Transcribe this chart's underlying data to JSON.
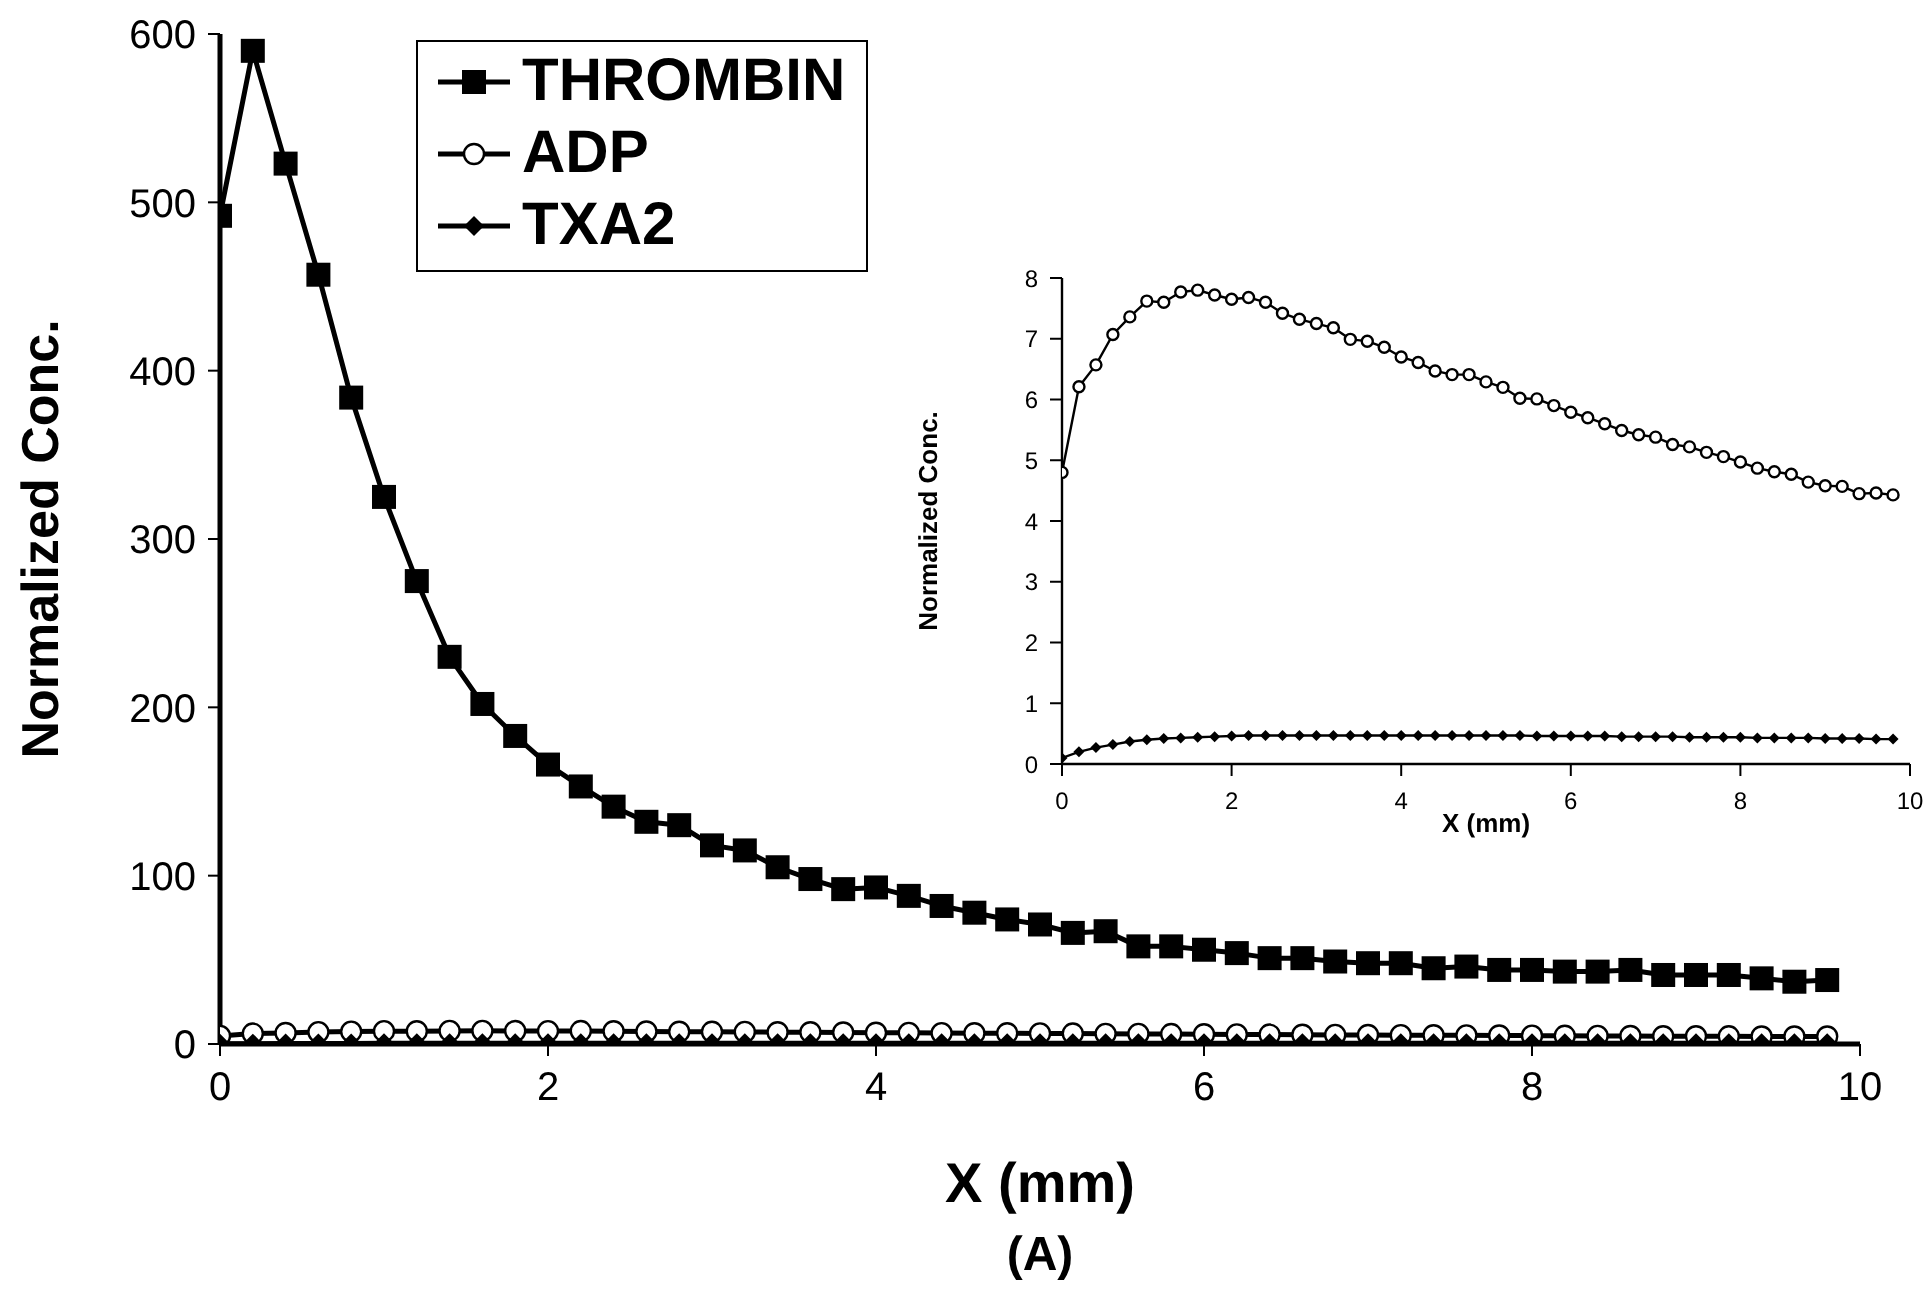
{
  "chart_data": [
    {
      "type": "line",
      "xlabel": "X (mm)",
      "ylabel": "Normalized Conc.",
      "annotations": [
        "(A)"
      ],
      "x": [
        0,
        0.2,
        0.4,
        0.6,
        0.8,
        1,
        1.2,
        1.4,
        1.6,
        1.8,
        2,
        2.2,
        2.4,
        2.6,
        2.8,
        3,
        3.2,
        3.4,
        3.6,
        3.8,
        4,
        4.2,
        4.4,
        4.6,
        4.8,
        5,
        5.2,
        5.4,
        5.6,
        5.8,
        6,
        6.2,
        6.4,
        6.6,
        6.8,
        7,
        7.2,
        7.4,
        7.6,
        7.8,
        8,
        8.2,
        8.4,
        8.6,
        8.8,
        9,
        9.2,
        9.4,
        9.6,
        9.8
      ],
      "xlim": [
        0,
        10
      ],
      "xticks": [
        0,
        2,
        4,
        6,
        8,
        10
      ],
      "ylim": [
        0,
        600
      ],
      "yticks": [
        0,
        100,
        200,
        300,
        400,
        500,
        600
      ],
      "legend": "top left",
      "grid": false,
      "series": [
        {
          "name": "THROMBIN",
          "color": "#000000",
          "marker": "square",
          "values": [
            492,
            590,
            523,
            457,
            384,
            325,
            275,
            230,
            202,
            183,
            166,
            153,
            141,
            132,
            130,
            118,
            115,
            105,
            98,
            92,
            93,
            88,
            82,
            78,
            74,
            71,
            66,
            67,
            58,
            58,
            56,
            54,
            51,
            51,
            49,
            48,
            48,
            45,
            46,
            44,
            44,
            43,
            43,
            44,
            41,
            41,
            41,
            39,
            37,
            38
          ]
        },
        {
          "name": "ADP",
          "color": "#000000",
          "marker": "circle",
          "values": [
            4.8,
            6.21,
            6.57,
            7.07,
            7.36,
            7.62,
            7.6,
            7.77,
            7.8,
            7.72,
            7.65,
            7.68,
            7.6,
            7.42,
            7.32,
            7.25,
            7.18,
            6.99,
            6.96,
            6.86,
            6.7,
            6.61,
            6.47,
            6.41,
            6.41,
            6.29,
            6.2,
            6.02,
            6.01,
            5.9,
            5.79,
            5.7,
            5.6,
            5.49,
            5.42,
            5.38,
            5.26,
            5.22,
            5.13,
            5.06,
            4.97,
            4.87,
            4.81,
            4.77,
            4.64,
            4.58,
            4.57,
            4.45,
            4.46,
            4.43
          ]
        },
        {
          "name": "TXA2",
          "color": "#000000",
          "marker": "diamond",
          "values": [
            0.1,
            0.2,
            0.27,
            0.32,
            0.37,
            0.4,
            0.42,
            0.43,
            0.44,
            0.45,
            0.46,
            0.47,
            0.47,
            0.47,
            0.47,
            0.47,
            0.47,
            0.47,
            0.47,
            0.47,
            0.47,
            0.47,
            0.47,
            0.47,
            0.47,
            0.47,
            0.47,
            0.47,
            0.46,
            0.46,
            0.46,
            0.46,
            0.46,
            0.45,
            0.45,
            0.45,
            0.45,
            0.44,
            0.44,
            0.44,
            0.44,
            0.43,
            0.43,
            0.43,
            0.43,
            0.42,
            0.42,
            0.42,
            0.41,
            0.41
          ]
        }
      ]
    },
    {
      "type": "line",
      "xlabel": "X (mm)",
      "ylabel": "Normalized Conc.",
      "x": [
        0,
        0.2,
        0.4,
        0.6,
        0.8,
        1,
        1.2,
        1.4,
        1.6,
        1.8,
        2,
        2.2,
        2.4,
        2.6,
        2.8,
        3,
        3.2,
        3.4,
        3.6,
        3.8,
        4,
        4.2,
        4.4,
        4.6,
        4.8,
        5,
        5.2,
        5.4,
        5.6,
        5.8,
        6,
        6.2,
        6.4,
        6.6,
        6.8,
        7,
        7.2,
        7.4,
        7.6,
        7.8,
        8,
        8.2,
        8.4,
        8.6,
        8.8,
        9,
        9.2,
        9.4,
        9.6,
        9.8
      ],
      "xlim": [
        0,
        10
      ],
      "xticks": [
        0,
        2,
        4,
        6,
        8,
        10
      ],
      "ylim": [
        0,
        8
      ],
      "yticks": [
        0,
        1,
        2,
        3,
        4,
        5,
        6,
        7,
        8
      ],
      "legend": false,
      "grid": false,
      "series": [
        {
          "color": "#000000",
          "marker": "circle",
          "values": [
            4.8,
            6.21,
            6.57,
            7.07,
            7.36,
            7.62,
            7.6,
            7.77,
            7.8,
            7.72,
            7.65,
            7.68,
            7.6,
            7.42,
            7.32,
            7.25,
            7.18,
            6.99,
            6.96,
            6.86,
            6.7,
            6.61,
            6.47,
            6.41,
            6.41,
            6.29,
            6.2,
            6.02,
            6.01,
            5.9,
            5.79,
            5.7,
            5.6,
            5.49,
            5.42,
            5.38,
            5.26,
            5.22,
            5.13,
            5.06,
            4.97,
            4.87,
            4.81,
            4.77,
            4.64,
            4.58,
            4.57,
            4.45,
            4.46,
            4.43
          ]
        },
        {
          "color": "#000000",
          "marker": "diamond",
          "values": [
            0.1,
            0.2,
            0.27,
            0.32,
            0.37,
            0.4,
            0.42,
            0.43,
            0.44,
            0.45,
            0.46,
            0.47,
            0.47,
            0.47,
            0.47,
            0.47,
            0.47,
            0.47,
            0.47,
            0.47,
            0.47,
            0.47,
            0.47,
            0.47,
            0.47,
            0.47,
            0.47,
            0.47,
            0.46,
            0.46,
            0.46,
            0.46,
            0.46,
            0.45,
            0.45,
            0.45,
            0.45,
            0.44,
            0.44,
            0.44,
            0.44,
            0.43,
            0.43,
            0.43,
            0.43,
            0.42,
            0.42,
            0.42,
            0.41,
            0.41
          ]
        }
      ]
    }
  ]
}
